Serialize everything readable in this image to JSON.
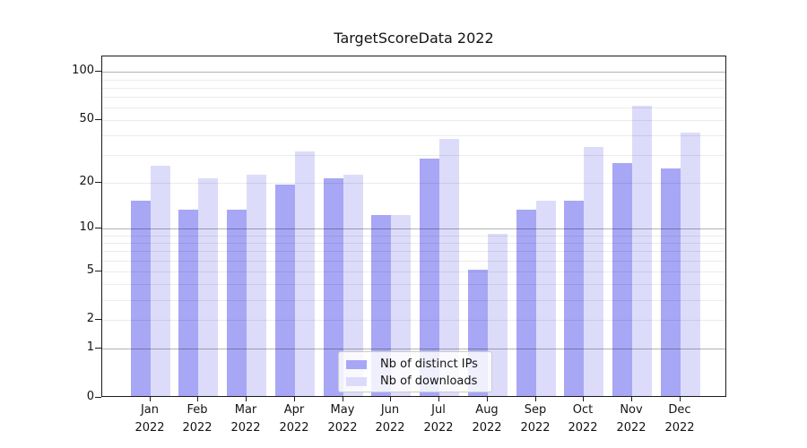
{
  "title": "TargetScoreData 2022",
  "chart_data": {
    "type": "bar",
    "title": "TargetScoreData 2022",
    "categories": [
      "Jan 2022",
      "Feb 2022",
      "Mar 2022",
      "Apr 2022",
      "May 2022",
      "Jun 2022",
      "Jul 2022",
      "Aug 2022",
      "Sep 2022",
      "Oct 2022",
      "Nov 2022",
      "Dec 2022"
    ],
    "series": [
      {
        "name": "Nb of distinct IPs",
        "color": "#a7a7f5",
        "values": [
          15,
          13,
          13,
          19,
          21,
          12,
          28,
          5,
          13,
          15,
          26,
          24
        ]
      },
      {
        "name": "Nb of downloads",
        "color": "#dcdcfa",
        "values": [
          25,
          21,
          22,
          31,
          22,
          12,
          37,
          9,
          15,
          33,
          60,
          41
        ]
      }
    ],
    "xlabel": "",
    "ylabel": "",
    "y_scale": "log1p",
    "ylim": [
      0,
      125
    ],
    "y_ticks": [
      0,
      1,
      2,
      5,
      10,
      20,
      50,
      100
    ],
    "y_minor_ticks": [
      3,
      4,
      6,
      7,
      8,
      9,
      30,
      40,
      60,
      70,
      80,
      90
    ],
    "grid": "on",
    "legend_position": "lower center"
  },
  "colors": {
    "background": "#ffffff",
    "spine": "#1b1b1b",
    "grid_decade": "rgba(0,0,0,0.30)",
    "grid_minor": "rgba(0,0,0,0.08)",
    "legend_border": "#cccccc",
    "text": "#141414"
  }
}
